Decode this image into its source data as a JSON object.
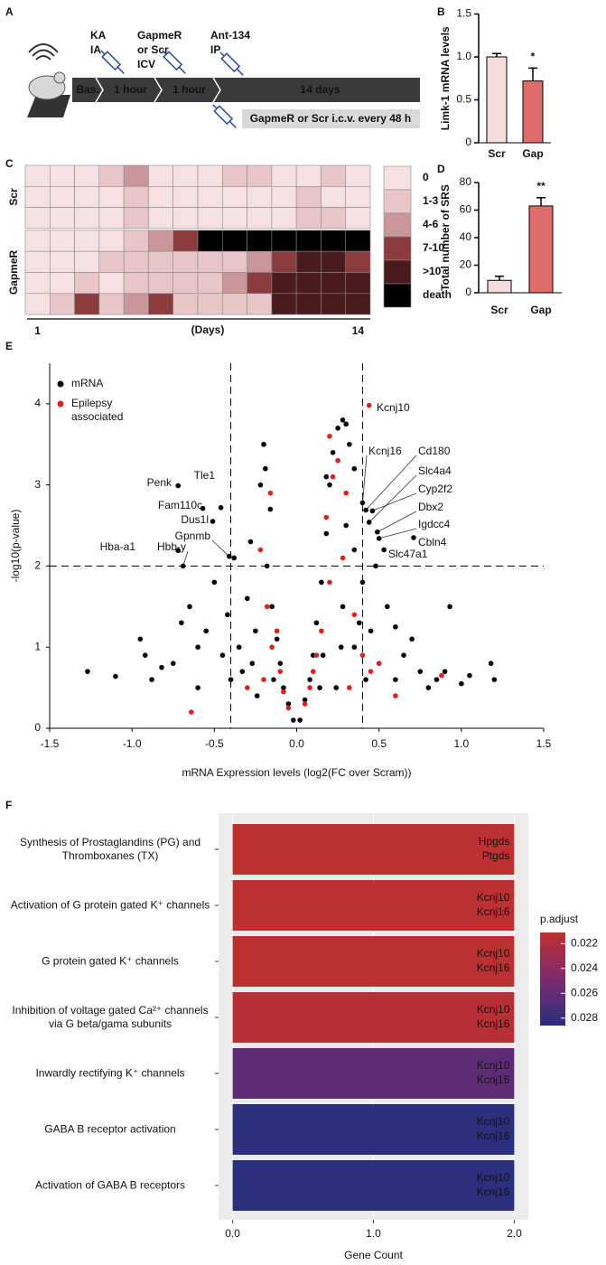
{
  "panels": [
    "A",
    "B",
    "C",
    "D",
    "E",
    "F"
  ],
  "timeline": {
    "injections": [
      [
        "KA",
        "IA"
      ],
      [
        "GapmeR",
        "or Scr",
        "ICV"
      ],
      [
        "Ant-134",
        "IP"
      ]
    ],
    "stages": [
      "Bas.",
      "1 hour",
      "1 hour",
      "14 days"
    ],
    "maintenance": "GapmeR or Scr i.c.v. every 48 h"
  },
  "chart_data": [
    {
      "type": "bar",
      "ylabel": "Limk-1 mRNA levels",
      "categories": [
        "Scr",
        "Gap"
      ],
      "values": [
        1.0,
        0.72
      ],
      "errors": [
        0.04,
        0.15
      ],
      "colors": [
        "#f6dcdd",
        "#e06b6b"
      ],
      "significance": [
        null,
        "*"
      ],
      "ylim": [
        0,
        1.5
      ],
      "yticks": [
        0,
        0.5,
        {
          "value": 1,
          "label": "1.0"
        },
        1.5
      ]
    },
    {
      "type": "heatmap",
      "xlabel": "(Days)",
      "xticks": [
        1,
        14
      ],
      "levels": [
        "0",
        "1-3",
        "4-6",
        "7-10",
        ">10",
        "death"
      ],
      "colors": [
        "#f5e1e2",
        "#e8c5c8",
        "#c9969a",
        "#8c3b3f",
        "#4a1a1c",
        "#000000"
      ],
      "row_groups": [
        {
          "name": "Scr",
          "rows": [
            [
              0,
              0,
              0,
              1,
              2,
              0,
              0,
              0,
              1,
              1,
              0,
              0,
              1,
              0
            ],
            [
              0,
              0,
              0,
              0,
              1,
              0,
              0,
              0,
              0,
              0,
              0,
              1,
              0,
              0
            ],
            [
              0,
              0,
              0,
              0,
              1,
              0,
              0,
              0,
              0,
              0,
              0,
              1,
              1,
              0
            ]
          ]
        },
        {
          "name": "GapmeR",
          "rows": [
            [
              0,
              0,
              0,
              0,
              1,
              2,
              3,
              5,
              5,
              5,
              5,
              5,
              5,
              5
            ],
            [
              0,
              0,
              0,
              1,
              1,
              1,
              1,
              1,
              1,
              2,
              3,
              4,
              4,
              3
            ],
            [
              0,
              0,
              1,
              0,
              1,
              1,
              1,
              1,
              2,
              3,
              4,
              4,
              4,
              4
            ],
            [
              0,
              1,
              3,
              1,
              2,
              3,
              1,
              1,
              1,
              1,
              4,
              4,
              4,
              4
            ]
          ]
        }
      ]
    },
    {
      "type": "bar",
      "ylabel": "Total number of SRS",
      "categories": [
        "Scr",
        "Gap"
      ],
      "values": [
        9,
        63
      ],
      "errors": [
        3,
        6
      ],
      "colors": [
        "#f6dcdd",
        "#e06b6b"
      ],
      "significance": [
        null,
        "**"
      ],
      "ylim": [
        0,
        80
      ],
      "yticks": [
        0,
        20,
        40,
        60,
        80
      ]
    },
    {
      "type": "scatter",
      "xlabel": "mRNA Expression levels (log2(FC over Scram))",
      "ylabel": "-log10(p-value)",
      "xlim": [
        -1.5,
        1.5
      ],
      "ylim": [
        0,
        4.5
      ],
      "xticks": [
        -1.5,
        {
          "value": -1,
          "label": "-1.0"
        },
        -0.5,
        {
          "value": 0,
          "label": "0.0"
        },
        0.5,
        {
          "value": 1,
          "label": "1.0"
        },
        1.5
      ],
      "yticks": [
        0,
        1,
        2,
        3,
        4
      ],
      "thresholds": {
        "x": [
          -0.4,
          0.4
        ],
        "y": 2
      },
      "series": [
        {
          "name": "mRNA",
          "color": "#000000",
          "x": [
            -1.27,
            -1.1,
            -0.95,
            -0.92,
            -0.88,
            -0.82,
            -0.75,
            -0.7,
            -0.65,
            -0.6,
            -0.55,
            -0.5,
            -0.45,
            -0.42,
            -0.38,
            -0.35,
            -0.3,
            -0.28,
            -0.25,
            -0.22,
            -0.2,
            -0.18,
            -0.15,
            -0.12,
            -0.1,
            -0.08,
            -0.05,
            -0.02,
            0.02,
            0.05,
            0.08,
            0.1,
            0.12,
            0.15,
            0.18,
            0.2,
            0.22,
            0.25,
            0.28,
            0.3,
            0.32,
            0.35,
            0.3,
            0.28,
            0.35,
            0.4,
            0.45,
            0.5,
            0.55,
            0.6,
            0.65,
            0.7,
            0.75,
            0.8,
            0.85,
            0.9,
            0.93,
            1.0,
            1.05,
            1.18,
            1.2,
            0.48,
            0.38,
            -0.33,
            -0.24,
            0.24,
            0.16,
            -0.16,
            -0.19,
            0.18,
            -0.14,
            0.14,
            0.35,
            -0.4,
            0.42,
            0.6,
            -0.6,
            0.27,
            -0.27
          ],
          "y": [
            0.7,
            0.64,
            1.1,
            0.9,
            0.6,
            0.75,
            0.8,
            1.3,
            1.5,
            0.5,
            1.2,
            1.8,
            0.9,
            1.4,
            2.1,
            1.0,
            1.6,
            2.3,
            1.2,
            3.0,
            3.5,
            2.0,
            1.5,
            1.1,
            0.8,
            0.5,
            0.3,
            0.1,
            0.1,
            0.35,
            0.6,
            0.9,
            1.3,
            1.8,
            2.4,
            3.0,
            3.4,
            3.7,
            3.8,
            3.75,
            3.5,
            3.2,
            2.5,
            1.5,
            1.0,
            1.8,
            1.2,
            0.8,
            1.5,
            0.6,
            0.9,
            1.1,
            0.7,
            0.5,
            0.6,
            0.7,
            1.5,
            0.55,
            0.65,
            0.8,
            0.6,
            2.0,
            1.3,
            0.7,
            0.4,
            0.5,
            0.9,
            2.7,
            3.2,
            3.1,
            0.6,
            0.5,
            2.2,
            0.6,
            0.6,
            1.25,
            1.0,
            1.0,
            0.8
          ]
        },
        {
          "name": "Epilepsy associated",
          "color": "#e0201f",
          "x": [
            -0.64,
            -0.2,
            -0.15,
            -0.1,
            -0.18,
            -0.22,
            -0.16,
            -0.3,
            0.1,
            0.15,
            0.2,
            0.18,
            0.22,
            0.25,
            0.2,
            0.3,
            0.28,
            0.35,
            0.4,
            0.45,
            0.6,
            0.88,
            0.5,
            -0.05,
            0.05,
            -0.08,
            0.08,
            0.12,
            -0.12,
            0.32
          ],
          "y": [
            0.2,
            0.6,
            1.0,
            0.7,
            1.5,
            2.2,
            2.9,
            0.5,
            0.7,
            1.2,
            1.8,
            2.6,
            3.1,
            3.3,
            3.6,
            2.9,
            2.1,
            1.4,
            0.9,
            0.7,
            0.4,
            0.65,
            0.8,
            0.25,
            0.3,
            0.45,
            0.5,
            0.9,
            1.2,
            0.5
          ]
        }
      ],
      "annotations": [
        {
          "text": "Kcnj10",
          "x": 0.44,
          "y": 3.98,
          "color": "#e0201f"
        },
        {
          "text": "Penk",
          "x": -0.72,
          "y": 2.99,
          "color": "#000000"
        },
        {
          "text": "Tle1",
          "x": -0.46,
          "y": 2.72,
          "color": "#000000"
        },
        {
          "text": "Fam110c",
          "x": -0.57,
          "y": 2.71,
          "color": "#000000"
        },
        {
          "text": "Dus1l",
          "x": -0.51,
          "y": 2.55,
          "color": "#000000"
        },
        {
          "text": "Gpnmb",
          "x": -0.41,
          "y": 2.12,
          "color": "#000000"
        },
        {
          "text": "Hba-a1",
          "x": -0.72,
          "y": 2.19,
          "color": "#000000"
        },
        {
          "text": "Hbb-y",
          "x": -0.69,
          "y": 2.0,
          "color": "#000000"
        },
        {
          "text": "Kcnj16",
          "x": 0.4,
          "y": 2.78,
          "color": "#000000"
        },
        {
          "text": "Cd180",
          "x": 0.42,
          "y": 2.69,
          "color": "#000000"
        },
        {
          "text": "Slc4a4",
          "x": 0.44,
          "y": 2.54,
          "color": "#000000"
        },
        {
          "text": "Cyp2f2",
          "x": 0.46,
          "y": 2.68,
          "color": "#000000"
        },
        {
          "text": "Dbx2",
          "x": 0.49,
          "y": 2.42,
          "color": "#000000"
        },
        {
          "text": "Igdcc4",
          "x": 0.5,
          "y": 2.34,
          "color": "#000000"
        },
        {
          "text": "Cbln4",
          "x": 0.71,
          "y": 2.35,
          "color": "#000000"
        },
        {
          "text": "Slc47a1",
          "x": 0.53,
          "y": 2.2,
          "color": "#000000"
        }
      ]
    },
    {
      "type": "bar",
      "horizontal": true,
      "xlabel": "Gene Count",
      "categories": [
        "Synthesis of Prostaglandins (PG) and Thromboxanes (TX)",
        "Activation of G protein gated K⁺ channels",
        "G protein gated K⁺ channels",
        "Inhibition of voltage gated Ca²⁺ channels via G beta/gama subunits",
        "Inwardly rectifying K⁺ channels",
        "GABA B receptor activation",
        "Activation of GABA B receptors"
      ],
      "values": [
        2,
        2,
        2,
        2,
        2,
        2,
        2
      ],
      "genes": [
        [
          "Hpgds",
          "Ptgds"
        ],
        [
          "Kcnj10",
          "Kcnj16"
        ],
        [
          "Kcnj10",
          "Kcnj16"
        ],
        [
          "Kcnj10",
          "Kcnj16"
        ],
        [
          "Kcnj10",
          "Kcnj16"
        ],
        [
          "Kcnj10",
          "Kcnj16"
        ],
        [
          "Kcnj10",
          "Kcnj16"
        ]
      ],
      "p_adjust": [
        0.0212,
        0.0213,
        0.0213,
        0.0215,
        0.0262,
        0.0286,
        0.0286
      ],
      "xlim": [
        -0.1,
        2.1
      ],
      "xticks": [
        {
          "value": 0,
          "label": "0.0"
        },
        {
          "value": 1,
          "label": "1.0"
        },
        {
          "value": 2,
          "label": "2.0"
        }
      ],
      "color_scale": {
        "name": "p.adjust",
        "lim": [
          0.0211,
          0.0286
        ],
        "ticks": [
          0.022,
          0.024,
          0.026,
          0.028
        ],
        "colors": [
          "#c0302f",
          "#7b2b6e",
          "#2b2f7e"
        ]
      }
    }
  ]
}
